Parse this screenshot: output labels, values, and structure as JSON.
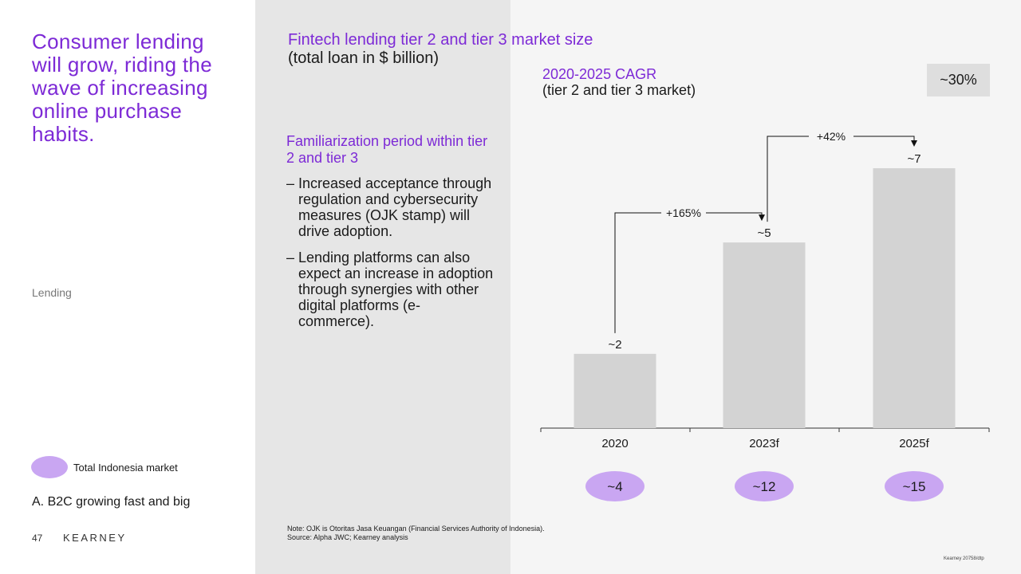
{
  "headline": "Consumer lending will grow, riding the wave of increasing online purchase habits.",
  "section_label": "Lending",
  "legend": {
    "label": "Total Indonesia market",
    "color": "#c9a6f2"
  },
  "tracker": "A. B2C growing fast and big",
  "footer": {
    "page": "47",
    "brand": "KEARNEY"
  },
  "side_panel": {
    "heading": "Familiarization period within tier 2 and tier 3",
    "bullets": [
      "Increased acceptance through regulation and cybersecurity measures (OJK stamp) will drive adoption.",
      "Lending platforms can also expect an increase in adoption through synergies with other digital platforms (e-commerce)."
    ]
  },
  "cagr": {
    "title": "2020-2025 CAGR",
    "subtitle": "(tier 2 and tier 3 market)",
    "value": "~30%"
  },
  "note": "Note: OJK is Otoritas Jasa Keuangan (Financial Services Authority of Indonesia).",
  "source": "Source: Alpha JWC; Kearney analysis",
  "reference": "Kearney 20758/dtp",
  "colors": {
    "accent": "#7d2ad6",
    "bar": "#d3d3d3",
    "bubble": "#c9a6f2"
  },
  "chart_data": {
    "type": "bar",
    "title": "Fintech lending tier 2 and tier 3 market size",
    "subtitle": "(total loan in $ billion)",
    "categories": [
      "2020",
      "2023f",
      "2025f"
    ],
    "values": [
      2,
      5,
      7
    ],
    "value_labels": [
      "~2",
      "~5",
      "~7"
    ],
    "total_market_labels": [
      "~4",
      "~12",
      "~15"
    ],
    "growth_annotations": [
      {
        "from": "2020",
        "to": "2023f",
        "label": "+165%"
      },
      {
        "from": "2023f",
        "to": "2025f",
        "label": "+42%"
      }
    ],
    "ylim": [
      0,
      7
    ],
    "grid": false
  }
}
